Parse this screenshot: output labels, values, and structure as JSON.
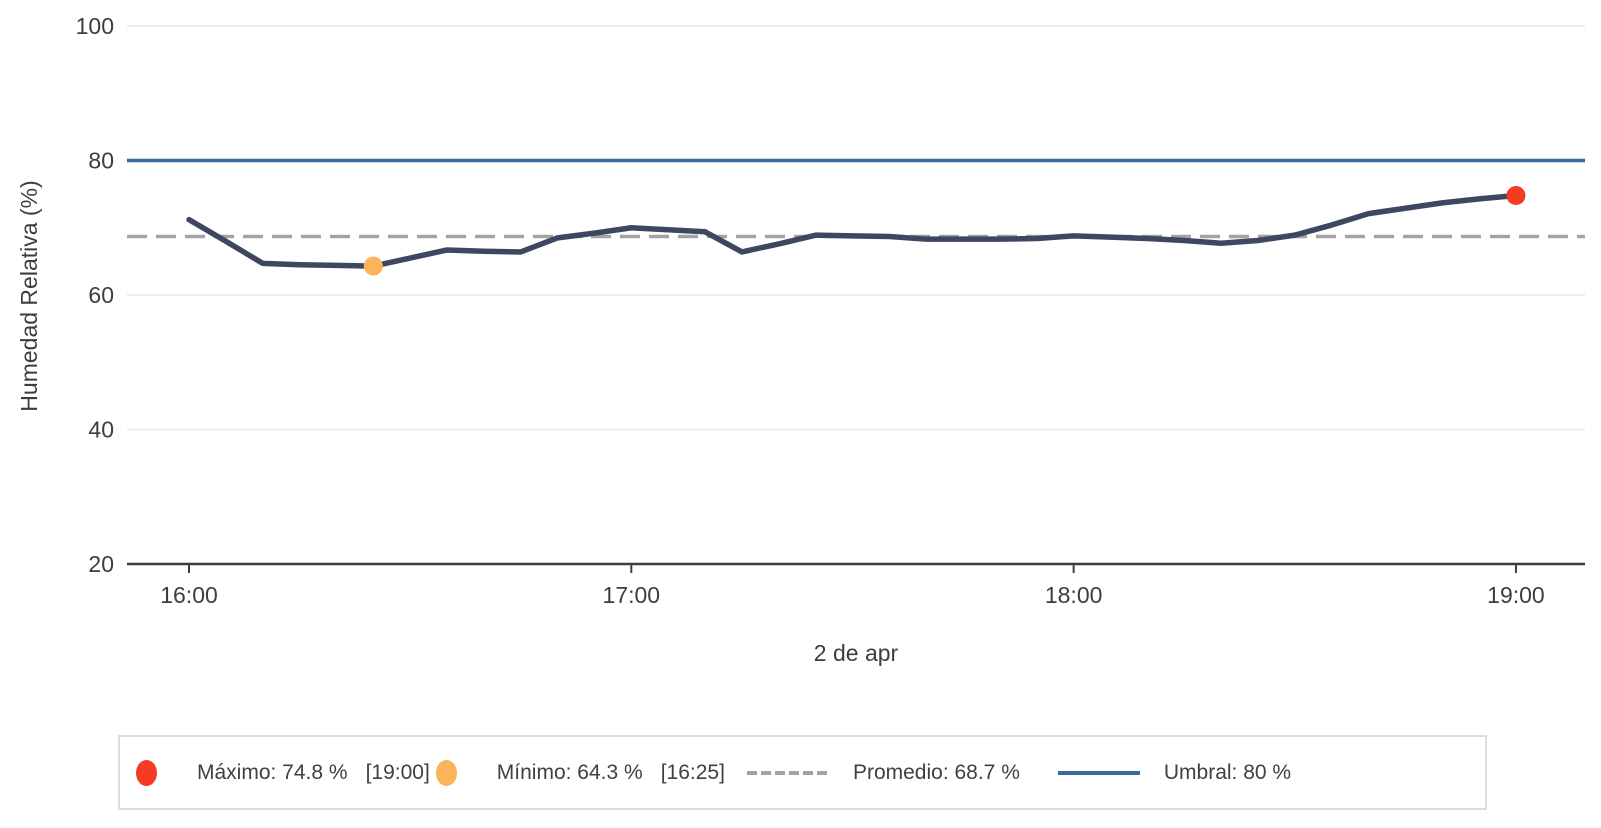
{
  "chart_data": {
    "type": "line",
    "title": "",
    "xlabel": "2 de apr",
    "ylabel": "Humedad Relativa (%)",
    "ylim": [
      20,
      100
    ],
    "y_ticks": [
      100,
      80,
      60,
      40,
      20
    ],
    "x_ticks": [
      {
        "label": "16:00",
        "minutes": 0
      },
      {
        "label": "17:00",
        "minutes": 60
      },
      {
        "label": "18:00",
        "minutes": 120
      },
      {
        "label": "19:00",
        "minutes": 180
      }
    ],
    "grid": "horizontal",
    "legend_position": "bottom",
    "series": [
      {
        "name": "Humedad Relativa",
        "times": [
          "16:00",
          "16:05",
          "16:10",
          "16:15",
          "16:20",
          "16:25",
          "16:30",
          "16:35",
          "16:40",
          "16:45",
          "16:50",
          "16:55",
          "17:00",
          "17:05",
          "17:10",
          "17:15",
          "17:20",
          "17:25",
          "17:30",
          "17:35",
          "17:40",
          "17:45",
          "17:50",
          "17:55",
          "18:00",
          "18:05",
          "18:10",
          "18:15",
          "18:20",
          "18:25",
          "18:30",
          "18:35",
          "18:40",
          "18:45",
          "18:50",
          "18:55",
          "19:00"
        ],
        "x_minutes": [
          0,
          5,
          10,
          15,
          20,
          25,
          30,
          35,
          40,
          45,
          50,
          55,
          60,
          65,
          70,
          75,
          80,
          85,
          90,
          95,
          100,
          105,
          110,
          115,
          120,
          125,
          130,
          135,
          140,
          145,
          150,
          155,
          160,
          165,
          170,
          175,
          180
        ],
        "values": [
          71.2,
          68.0,
          64.7,
          64.5,
          64.4,
          64.3,
          65.5,
          66.7,
          66.5,
          66.4,
          68.5,
          69.2,
          70.0,
          69.7,
          69.4,
          66.4,
          67.6,
          68.9,
          68.8,
          68.7,
          68.3,
          68.3,
          68.3,
          68.4,
          68.8,
          68.6,
          68.4,
          68.1,
          67.7,
          68.1,
          68.9,
          70.4,
          72.1,
          72.9,
          73.7,
          74.3,
          74.8
        ]
      }
    ],
    "threshold": {
      "value": 80
    },
    "average": {
      "value": 68.7
    },
    "max_point": {
      "value": 74.8,
      "time": "19:00",
      "minutes": 180
    },
    "min_point": {
      "value": 64.3,
      "time": "16:25",
      "minutes": 25
    }
  },
  "legend": {
    "items": [
      {
        "label": "Máximo: 74.8 %",
        "time": "[19:00]",
        "marker": "dot",
        "color": "#f43b24"
      },
      {
        "label": "Mínimo: 64.3 %",
        "time": "[16:25]",
        "marker": "dot",
        "color": "#f9b45c"
      },
      {
        "label": "Promedio: 68.7 %",
        "marker": "dashline",
        "color": "#a3a3a3"
      },
      {
        "label": "Umbral: 80 %",
        "marker": "solidline",
        "color": "#38699f"
      }
    ]
  },
  "colors": {
    "series_line": "#3e4760",
    "threshold_line": "#38699f",
    "average_line": "#a3a3a3",
    "max_marker": "#f43b24",
    "min_marker": "#f9b45c",
    "gridline": "#ececf0",
    "axis": "#3d3d3d",
    "tick_text": "#3d3d3d",
    "legend_border": "#dcdcdc"
  }
}
